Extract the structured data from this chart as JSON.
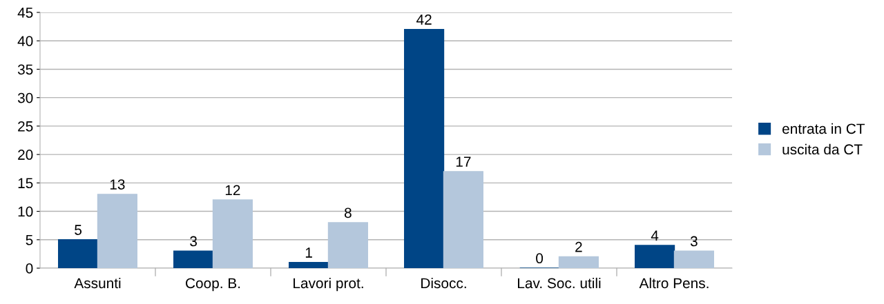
{
  "chart_data": {
    "type": "bar",
    "categories": [
      "Assunti",
      "Coop. B.",
      "Lavori prot.",
      "Disocc.",
      "Lav. Soc. utili",
      "Altro Pens."
    ],
    "series": [
      {
        "name": "entrata in CT",
        "color": "#004586",
        "values": [
          5,
          3,
          1,
          42,
          0,
          4
        ]
      },
      {
        "name": "uscita da CT",
        "color": "#b4c7dc",
        "values": [
          13,
          12,
          8,
          17,
          2,
          3
        ]
      }
    ],
    "ylim": [
      0,
      45
    ],
    "yticks": [
      0,
      5,
      10,
      15,
      20,
      25,
      30,
      35,
      40,
      45
    ],
    "grid": "y",
    "legend": "right",
    "data_labels": true
  }
}
